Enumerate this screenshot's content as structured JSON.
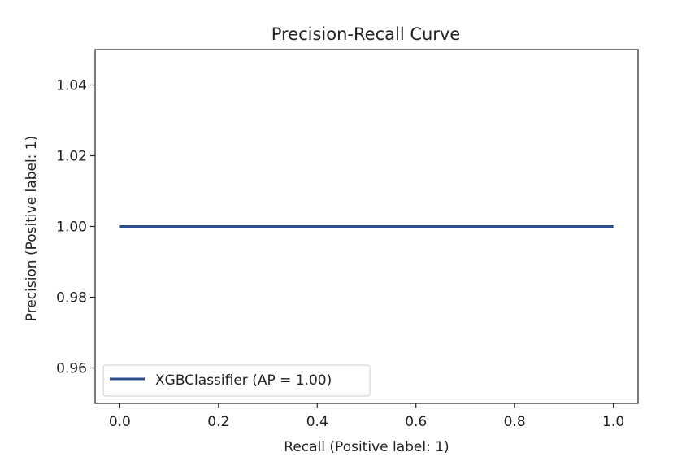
{
  "chart_data": {
    "type": "line",
    "title": "Precision-Recall Curve",
    "xlabel": "Recall (Positive label: 1)",
    "ylabel": "Precision (Positive label: 1)",
    "xlim": [
      -0.05,
      1.05
    ],
    "ylim": [
      0.95,
      1.05
    ],
    "xticks": [
      "0.0",
      "0.2",
      "0.4",
      "0.6",
      "0.8",
      "1.0"
    ],
    "yticks": [
      "0.96",
      "0.98",
      "1.00",
      "1.02",
      "1.04"
    ],
    "grid": false,
    "legend_position": "lower-left",
    "series": [
      {
        "name": "XGBClassifier (AP = 1.00)",
        "color": "#2f4b8f",
        "x": [
          0.0,
          1.0
        ],
        "y": [
          1.0,
          1.0
        ]
      }
    ]
  }
}
